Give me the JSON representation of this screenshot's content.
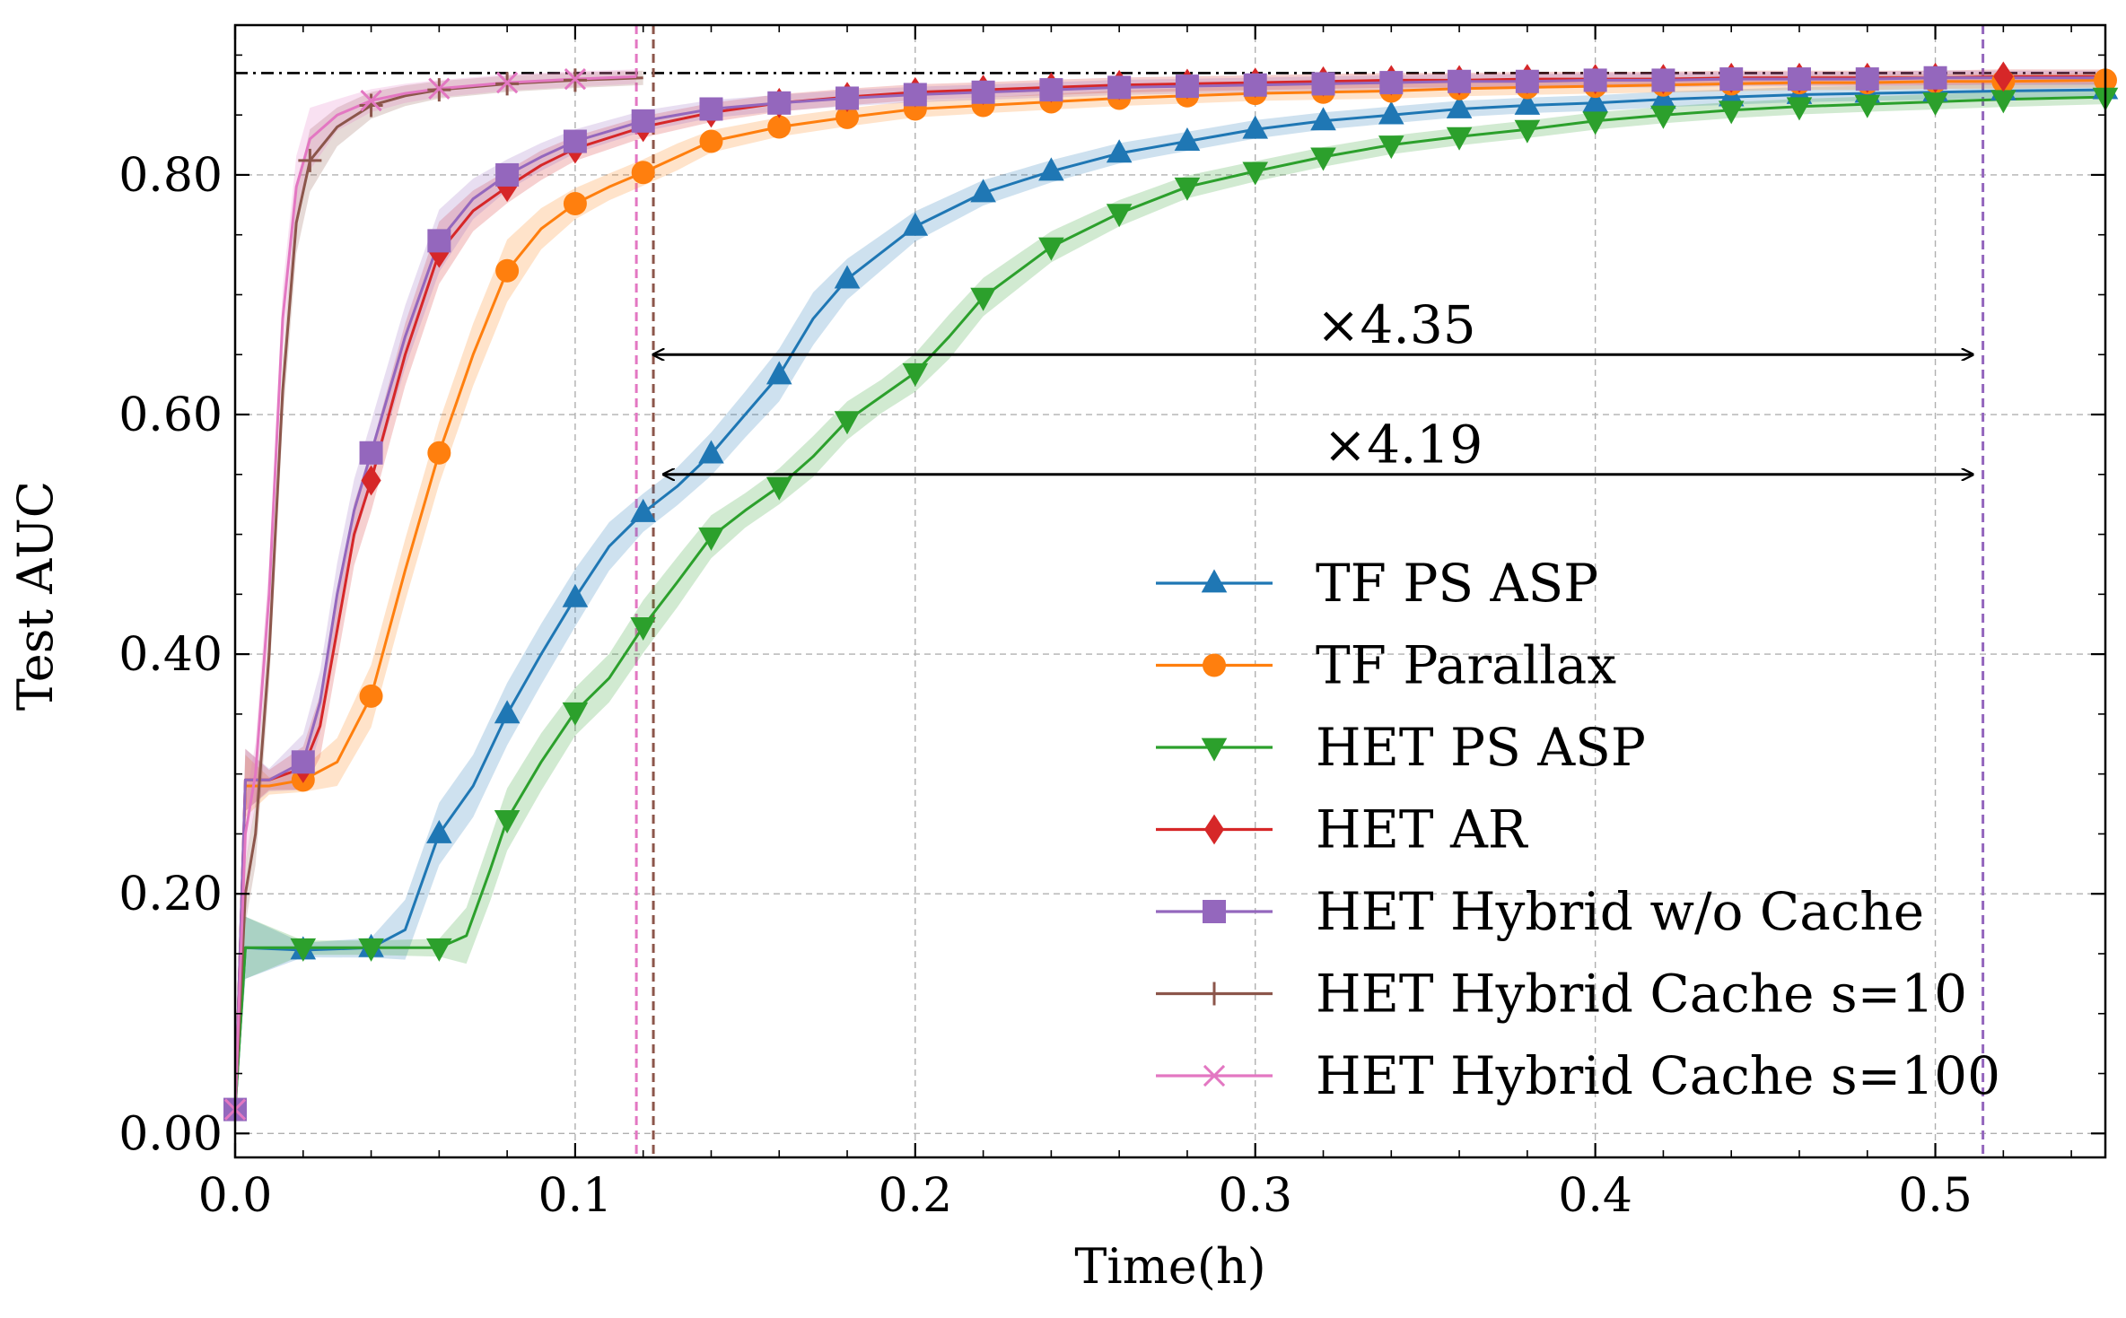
{
  "chart_data": {
    "type": "line",
    "title": "",
    "xlabel": "Time(h)",
    "ylabel": "Test AUC",
    "xlim": [
      0,
      0.55
    ],
    "ylim": [
      -0.02,
      0.925
    ],
    "xticks": [
      0.0,
      0.1,
      0.2,
      0.3,
      0.4,
      0.5
    ],
    "xtick_labels": [
      "0.0",
      "0.1",
      "0.2",
      "0.3",
      "0.4",
      "0.5"
    ],
    "yticks": [
      0.0,
      0.2,
      0.4,
      0.6,
      0.8
    ],
    "ytick_labels": [
      "0.00",
      "0.20",
      "0.40",
      "0.60",
      "0.80"
    ],
    "grid": true,
    "legend_position": "lower-right",
    "reference_line": {
      "y": 0.885,
      "style": "dash-dot",
      "color": "#000000"
    },
    "vertical_lines": [
      {
        "x": 0.118,
        "color": "#e377c2"
      },
      {
        "x": 0.123,
        "color": "#8c564b"
      },
      {
        "x": 0.514,
        "color": "#9467bd"
      }
    ],
    "annotations": [
      {
        "text": "×4.35",
        "x_start": 0.123,
        "x_end": 0.511,
        "y": 0.65,
        "label_x": 0.318,
        "label_y": 0.66
      },
      {
        "text": "×4.19",
        "x_start": 0.126,
        "x_end": 0.511,
        "y": 0.55,
        "label_x": 0.32,
        "label_y": 0.56
      }
    ],
    "series": [
      {
        "name": "TF PS ASP",
        "color": "#1f77b4",
        "marker": "triangle-up",
        "x": [
          0.0,
          0.003,
          0.02,
          0.04,
          0.05,
          0.06,
          0.07,
          0.08,
          0.09,
          0.1,
          0.11,
          0.12,
          0.13,
          0.14,
          0.15,
          0.16,
          0.17,
          0.18,
          0.19,
          0.2,
          0.22,
          0.24,
          0.26,
          0.28,
          0.3,
          0.32,
          0.34,
          0.36,
          0.38,
          0.4,
          0.42,
          0.44,
          0.46,
          0.48,
          0.5,
          0.52,
          0.55
        ],
        "y": [
          0.02,
          0.155,
          0.153,
          0.155,
          0.17,
          0.25,
          0.29,
          0.35,
          0.4,
          0.447,
          0.49,
          0.518,
          0.54,
          0.567,
          0.6,
          0.633,
          0.68,
          0.713,
          0.735,
          0.757,
          0.785,
          0.803,
          0.818,
          0.828,
          0.838,
          0.845,
          0.85,
          0.855,
          0.858,
          0.86,
          0.863,
          0.865,
          0.867,
          0.868,
          0.869,
          0.87,
          0.871
        ],
        "marker_x": [
          0.02,
          0.04,
          0.06,
          0.08,
          0.1,
          0.12,
          0.14,
          0.16,
          0.18,
          0.2,
          0.22,
          0.24,
          0.26,
          0.28,
          0.3,
          0.32,
          0.34,
          0.36,
          0.38,
          0.4,
          0.42,
          0.44,
          0.46,
          0.48,
          0.5,
          0.52,
          0.55
        ]
      },
      {
        "name": "TF Parallax",
        "color": "#ff7f0e",
        "marker": "circle",
        "x": [
          0.0,
          0.003,
          0.01,
          0.02,
          0.03,
          0.04,
          0.05,
          0.06,
          0.07,
          0.08,
          0.09,
          0.1,
          0.11,
          0.12,
          0.13,
          0.14,
          0.16,
          0.18,
          0.2,
          0.22,
          0.24,
          0.26,
          0.28,
          0.3,
          0.32,
          0.34,
          0.36,
          0.38,
          0.4,
          0.42,
          0.44,
          0.46,
          0.48,
          0.5,
          0.52,
          0.55
        ],
        "y": [
          0.02,
          0.29,
          0.29,
          0.295,
          0.31,
          0.365,
          0.47,
          0.568,
          0.65,
          0.72,
          0.755,
          0.776,
          0.79,
          0.802,
          0.815,
          0.828,
          0.84,
          0.848,
          0.855,
          0.858,
          0.861,
          0.864,
          0.866,
          0.868,
          0.869,
          0.87,
          0.872,
          0.873,
          0.874,
          0.875,
          0.876,
          0.877,
          0.877,
          0.878,
          0.878,
          0.879
        ],
        "marker_x": [
          0.02,
          0.04,
          0.06,
          0.08,
          0.1,
          0.12,
          0.14,
          0.16,
          0.18,
          0.2,
          0.22,
          0.24,
          0.26,
          0.28,
          0.3,
          0.32,
          0.34,
          0.36,
          0.38,
          0.4,
          0.42,
          0.44,
          0.46,
          0.48,
          0.5,
          0.52,
          0.55
        ]
      },
      {
        "name": "HET PS ASP",
        "color": "#2ca02c",
        "marker": "triangle-down",
        "x": [
          0.0,
          0.003,
          0.02,
          0.04,
          0.06,
          0.068,
          0.075,
          0.08,
          0.09,
          0.1,
          0.11,
          0.12,
          0.13,
          0.14,
          0.15,
          0.16,
          0.17,
          0.18,
          0.19,
          0.2,
          0.21,
          0.22,
          0.24,
          0.26,
          0.28,
          0.3,
          0.32,
          0.34,
          0.36,
          0.38,
          0.4,
          0.42,
          0.44,
          0.46,
          0.48,
          0.5,
          0.52,
          0.55
        ],
        "y": [
          0.02,
          0.155,
          0.155,
          0.155,
          0.155,
          0.165,
          0.22,
          0.262,
          0.31,
          0.352,
          0.38,
          0.423,
          0.46,
          0.498,
          0.52,
          0.54,
          0.565,
          0.595,
          0.615,
          0.635,
          0.665,
          0.698,
          0.74,
          0.768,
          0.79,
          0.803,
          0.815,
          0.825,
          0.832,
          0.838,
          0.845,
          0.85,
          0.854,
          0.857,
          0.859,
          0.861,
          0.863,
          0.865
        ],
        "marker_x": [
          0.02,
          0.04,
          0.06,
          0.08,
          0.1,
          0.12,
          0.14,
          0.16,
          0.18,
          0.2,
          0.22,
          0.24,
          0.26,
          0.28,
          0.3,
          0.32,
          0.34,
          0.36,
          0.38,
          0.4,
          0.42,
          0.44,
          0.46,
          0.48,
          0.5,
          0.52,
          0.55
        ]
      },
      {
        "name": "HET AR",
        "color": "#d62728",
        "marker": "diamond",
        "x": [
          0.0,
          0.003,
          0.01,
          0.02,
          0.025,
          0.03,
          0.035,
          0.04,
          0.05,
          0.06,
          0.07,
          0.08,
          0.09,
          0.1,
          0.12,
          0.14,
          0.16,
          0.18,
          0.2,
          0.22,
          0.24,
          0.26,
          0.28,
          0.3,
          0.32,
          0.34,
          0.36,
          0.38,
          0.4,
          0.42,
          0.44,
          0.46,
          0.48,
          0.5,
          0.52,
          0.55
        ],
        "y": [
          0.02,
          0.295,
          0.295,
          0.305,
          0.34,
          0.42,
          0.5,
          0.545,
          0.65,
          0.735,
          0.77,
          0.79,
          0.808,
          0.822,
          0.84,
          0.852,
          0.86,
          0.865,
          0.869,
          0.871,
          0.873,
          0.875,
          0.876,
          0.877,
          0.878,
          0.879,
          0.879,
          0.88,
          0.88,
          0.88,
          0.881,
          0.881,
          0.881,
          0.881,
          0.882,
          0.882
        ],
        "marker_x": [
          0.02,
          0.04,
          0.06,
          0.08,
          0.1,
          0.12,
          0.14,
          0.16,
          0.18,
          0.2,
          0.22,
          0.24,
          0.26,
          0.28,
          0.3,
          0.32,
          0.34,
          0.36,
          0.38,
          0.4,
          0.42,
          0.44,
          0.46,
          0.48,
          0.5,
          0.52
        ]
      },
      {
        "name": "HET Hybrid w/o Cache",
        "color": "#9467bd",
        "marker": "square",
        "x": [
          0.0,
          0.003,
          0.01,
          0.02,
          0.025,
          0.03,
          0.035,
          0.04,
          0.05,
          0.06,
          0.07,
          0.08,
          0.09,
          0.1,
          0.12,
          0.14,
          0.16,
          0.18,
          0.2,
          0.22,
          0.24,
          0.26,
          0.28,
          0.3,
          0.32,
          0.34,
          0.36,
          0.38,
          0.4,
          0.42,
          0.44,
          0.46,
          0.48,
          0.5,
          0.52,
          0.55
        ],
        "y": [
          0.02,
          0.295,
          0.295,
          0.31,
          0.36,
          0.45,
          0.52,
          0.568,
          0.665,
          0.745,
          0.78,
          0.8,
          0.815,
          0.828,
          0.845,
          0.855,
          0.86,
          0.864,
          0.867,
          0.869,
          0.871,
          0.873,
          0.874,
          0.875,
          0.876,
          0.877,
          0.878,
          0.878,
          0.879,
          0.879,
          0.88,
          0.88,
          0.88,
          0.881,
          0.881,
          0.881
        ],
        "marker_x": [
          0.0,
          0.02,
          0.04,
          0.06,
          0.08,
          0.1,
          0.12,
          0.14,
          0.16,
          0.18,
          0.2,
          0.22,
          0.24,
          0.26,
          0.28,
          0.3,
          0.32,
          0.34,
          0.36,
          0.38,
          0.4,
          0.42,
          0.44,
          0.46,
          0.48,
          0.5
        ]
      },
      {
        "name": "HET Hybrid Cache s=10",
        "color": "#8c564b",
        "marker": "plus",
        "x": [
          0.0,
          0.003,
          0.006,
          0.01,
          0.014,
          0.018,
          0.022,
          0.03,
          0.04,
          0.05,
          0.06,
          0.08,
          0.1,
          0.12
        ],
        "y": [
          0.02,
          0.2,
          0.25,
          0.4,
          0.62,
          0.76,
          0.812,
          0.84,
          0.858,
          0.866,
          0.871,
          0.876,
          0.879,
          0.881
        ],
        "marker_x": [
          0.022,
          0.04,
          0.06,
          0.08,
          0.1
        ]
      },
      {
        "name": "HET Hybrid Cache s=100",
        "color": "#e377c2",
        "marker": "x",
        "x": [
          0.0,
          0.003,
          0.006,
          0.01,
          0.014,
          0.018,
          0.022,
          0.03,
          0.04,
          0.05,
          0.06,
          0.08,
          0.1,
          0.118
        ],
        "y": [
          0.02,
          0.25,
          0.3,
          0.45,
          0.68,
          0.79,
          0.83,
          0.85,
          0.862,
          0.868,
          0.872,
          0.877,
          0.88,
          0.882
        ],
        "marker_x": [
          0.0,
          0.04,
          0.06,
          0.08,
          0.1
        ]
      }
    ]
  }
}
